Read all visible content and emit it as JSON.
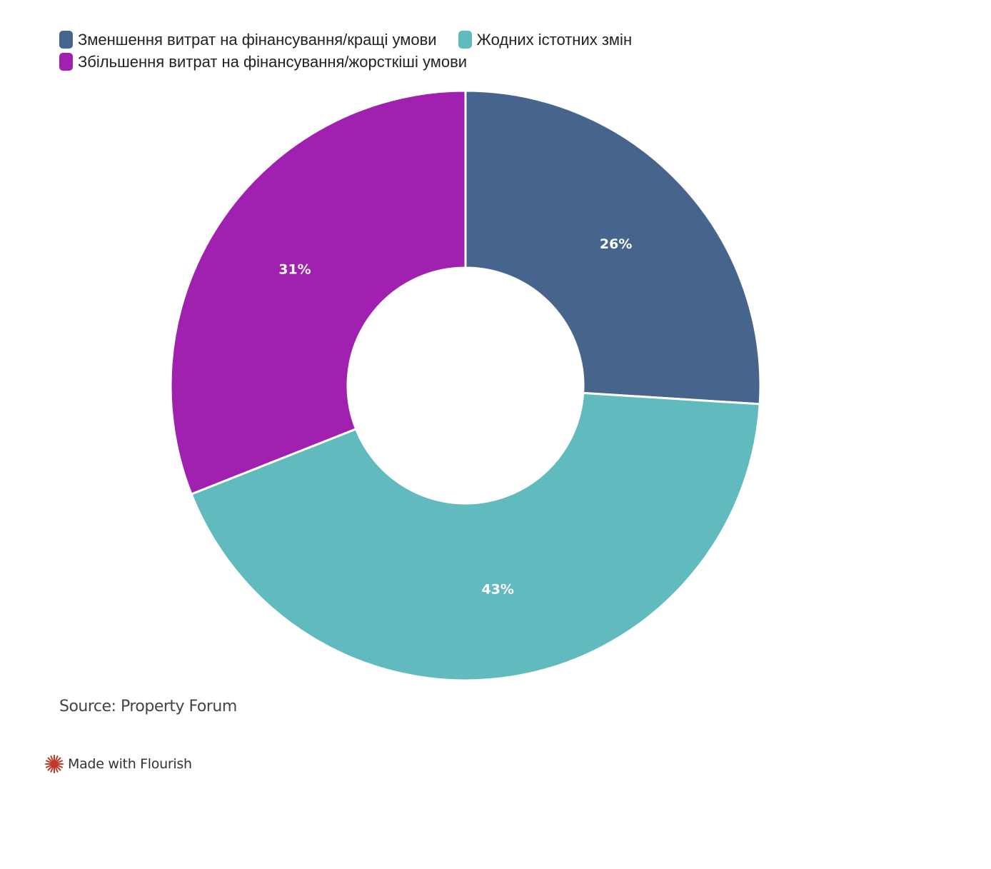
{
  "chart_data": {
    "type": "pie",
    "variant": "donut",
    "legend_placement": "top-left",
    "series": [
      {
        "name": "Зменшення витрат на фінансування/кращі умови",
        "value": 26,
        "label": "26%",
        "color": "#46648c"
      },
      {
        "name": "Жодних істотних змін",
        "value": 43,
        "label": "43%",
        "color": "#61babd"
      },
      {
        "name": "Збільшення витрат на фінансування/жорсткіші умови",
        "value": 31,
        "label": "31%",
        "color": "#a020b0"
      }
    ]
  },
  "footer": {
    "source": "Source: Property Forum",
    "made_with": "Made with Flourish",
    "made_with_icon": "flourish-logo-icon",
    "made_with_icon_color": "#c0392b"
  }
}
